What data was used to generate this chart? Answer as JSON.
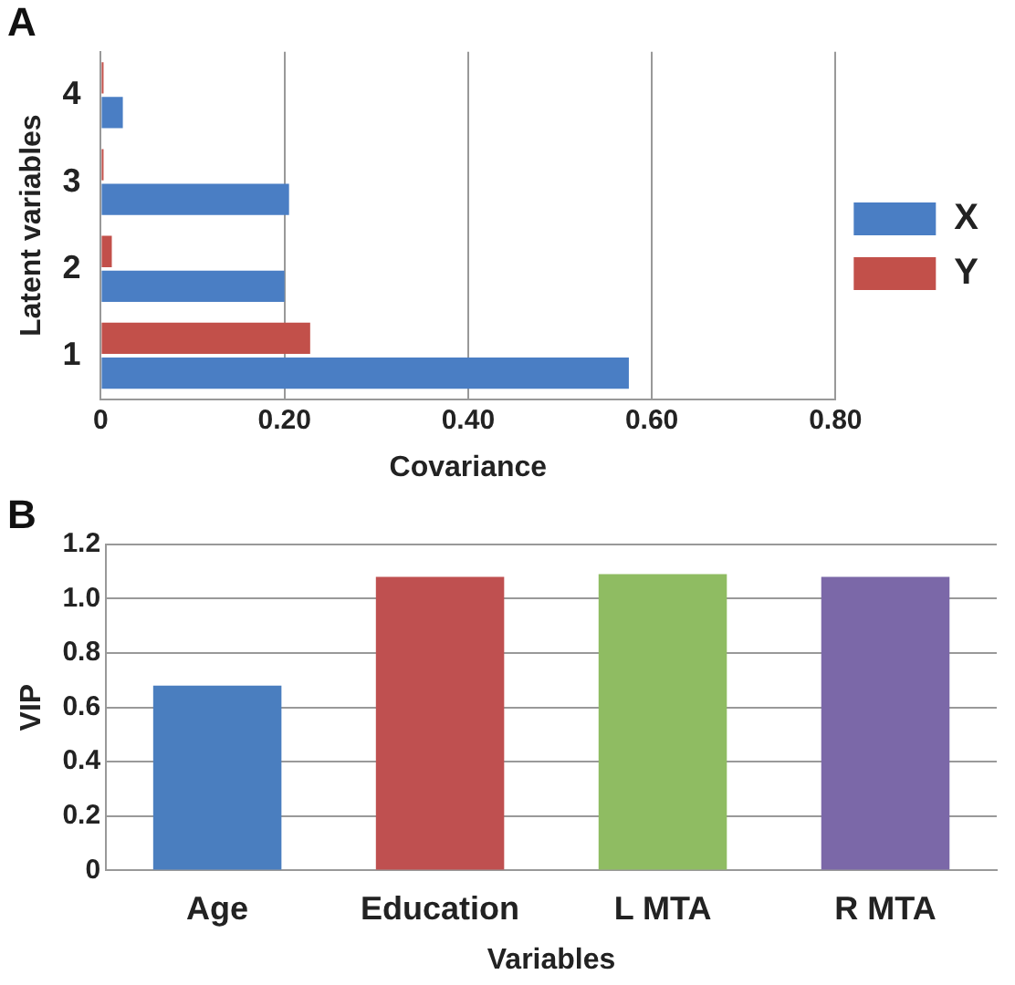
{
  "chart_data": [
    {
      "type": "bar",
      "title": "A",
      "orientation": "horizontal",
      "categories": [
        "4",
        "3",
        "2",
        "1"
      ],
      "xlabel": "Covariance",
      "ylabel": "Latent variables",
      "series": [
        {
          "name": "X",
          "color": "#4a7ec4",
          "values": [
            0.024,
            0.205,
            0.2,
            0.575
          ]
        },
        {
          "name": "Y",
          "color": "#c2504a",
          "values": [
            0.003,
            0.003,
            0.012,
            0.228
          ]
        }
      ],
      "xlim": [
        0,
        0.8
      ],
      "xticks": [
        0,
        {
          "value": 0.2,
          "label": "0.20"
        },
        {
          "value": 0.4,
          "label": "0.40"
        },
        {
          "value": 0.6,
          "label": "0.60"
        },
        {
          "value": 0.8,
          "label": "0.80"
        }
      ],
      "grid": "x",
      "legend": "right"
    },
    {
      "type": "bar",
      "title": "B",
      "categories": [
        "Age",
        "Education",
        "L MTA",
        "R MTA"
      ],
      "xlabel": "Variables",
      "ylabel": "VIP",
      "values": [
        0.68,
        1.08,
        1.09,
        1.08
      ],
      "colors": [
        "#4a7ebf",
        "#bf5050",
        "#8fbc62",
        "#7b68a8"
      ],
      "ylim": [
        0,
        1.2
      ],
      "yticks": [
        0,
        0.2,
        0.4,
        0.6,
        0.8,
        {
          "value": 1,
          "label": "1.0"
        },
        1.2
      ],
      "grid": "y"
    }
  ]
}
